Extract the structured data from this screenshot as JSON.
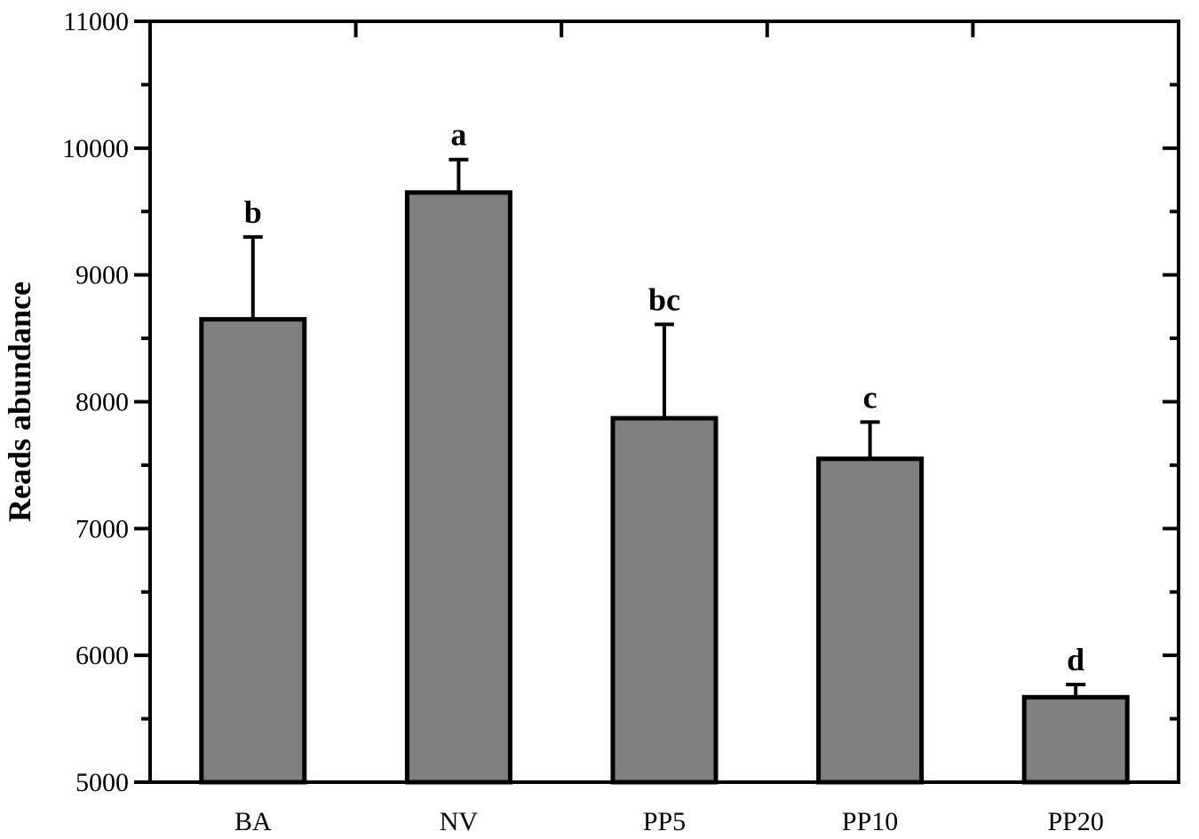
{
  "chart_data": {
    "type": "bar",
    "title": "",
    "xlabel": "",
    "ylabel": "Reads abundance",
    "ylim": [
      5000,
      11000
    ],
    "yticks": [
      5000,
      6000,
      7000,
      8000,
      9000,
      10000,
      11000
    ],
    "categories": [
      "BA",
      "NV",
      "PP5",
      "PP10",
      "PP20"
    ],
    "values": [
      8650,
      9650,
      7870,
      7550,
      5670
    ],
    "errors": [
      650,
      260,
      740,
      290,
      100
    ],
    "significance_labels": [
      "b",
      "a",
      "bc",
      "c",
      "d"
    ],
    "bar_color": "#808080",
    "edge_color": "#000000",
    "grid": false,
    "legend": "none"
  }
}
